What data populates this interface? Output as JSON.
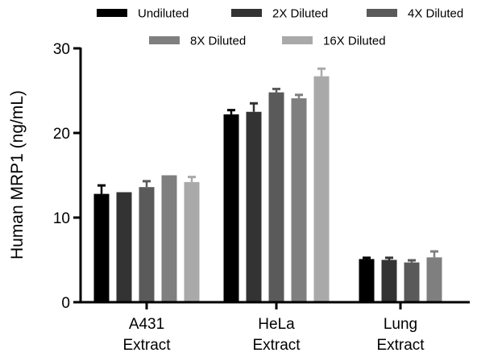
{
  "chart_data": {
    "type": "bar",
    "title": "",
    "xlabel": "",
    "ylabel": "Human MRP1 (ng/mL)",
    "ylim": [
      0,
      30
    ],
    "yticks": [
      0,
      10,
      20,
      30
    ],
    "categories": [
      [
        "A431",
        "Extract"
      ],
      [
        "HeLa",
        "Extract"
      ],
      [
        "Lung",
        "Extract"
      ]
    ],
    "series": [
      {
        "name": "Undiluted",
        "color": "#000000",
        "values": [
          12.8,
          22.2,
          5.1
        ],
        "errors": [
          1.0,
          0.5,
          0.15
        ]
      },
      {
        "name": "2X Diluted",
        "color": "#333333",
        "values": [
          13.0,
          22.5,
          5.0
        ],
        "errors": [
          0.05,
          1.0,
          0.25
        ]
      },
      {
        "name": "4X Diluted",
        "color": "#5a5a5a",
        "values": [
          13.6,
          24.8,
          4.7
        ],
        "errors": [
          0.7,
          0.4,
          0.25
        ]
      },
      {
        "name": "8X Diluted",
        "color": "#7f7f7f",
        "values": [
          15.0,
          24.1,
          5.3
        ],
        "errors": [
          0.05,
          0.4,
          0.7
        ]
      },
      {
        "name": "16X Diluted",
        "color": "#a9a9a9",
        "values": [
          14.2,
          26.7,
          null
        ],
        "errors": [
          0.6,
          0.9,
          null
        ]
      }
    ],
    "legend": "top",
    "grid": false
  }
}
